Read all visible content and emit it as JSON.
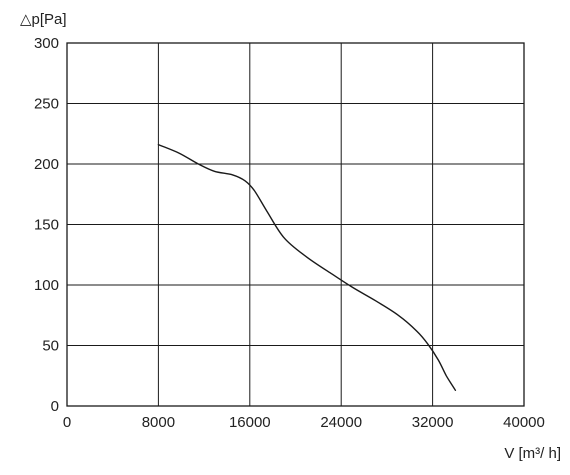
{
  "chart_data": {
    "type": "line",
    "ylabel": "△p[Pa]",
    "xlabel": "V [m³/ h]",
    "xlim": [
      0,
      40000
    ],
    "ylim": [
      0,
      300
    ],
    "xticks": [
      0,
      8000,
      16000,
      24000,
      32000,
      40000
    ],
    "yticks": [
      0,
      50,
      100,
      150,
      200,
      250,
      300
    ],
    "x_tick_labels": [
      "0",
      "8000",
      "16000",
      "24000",
      "32000",
      "40000"
    ],
    "y_tick_labels": [
      "0",
      "50",
      "100",
      "150",
      "200",
      "250",
      "300"
    ],
    "grid": true,
    "series": [
      {
        "x": [
          8000,
          9800,
          11500,
          12900,
          14500,
          15600,
          16400,
          17500,
          19000,
          21000,
          23200,
          25000,
          27000,
          29000,
          30600,
          31600,
          32500,
          33200,
          34000
        ],
        "y": [
          216,
          209,
          200,
          194,
          191,
          186,
          178,
          161,
          139,
          123,
          109,
          98,
          87,
          75,
          62,
          51,
          38,
          25,
          13
        ]
      }
    ]
  }
}
